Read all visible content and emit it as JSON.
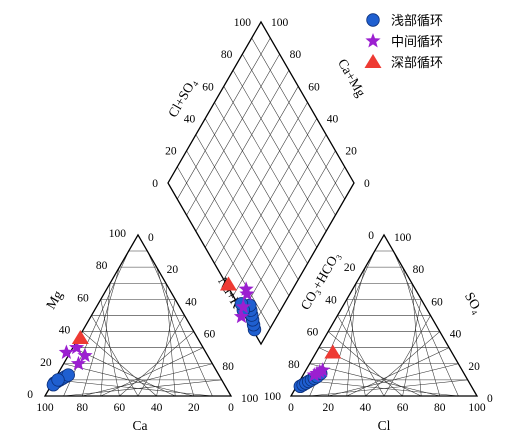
{
  "chart_data": {
    "type": "scatter",
    "subtype": "piper-diagram",
    "ternary_scale": [
      0,
      100
    ],
    "tick_labels": [
      "0",
      "20",
      "40",
      "60",
      "80",
      "100"
    ],
    "axes": {
      "cation_bottom": "Ca",
      "cation_left": "Mg",
      "cation_right": "Na+K",
      "anion_bottom": "Cl",
      "anion_left": "CO₃+HCO₃",
      "anion_right": "SO₄",
      "diamond_upper_left": "Cl+SO₄",
      "diamond_upper_right": "Ca+Mg"
    },
    "legend": {
      "position": "top-right"
    },
    "colors": {
      "shallow": "#1f5fd0",
      "middle": "#9b1fd0",
      "deep": "#ee3a33"
    },
    "series": [
      {
        "name": "浅部循环",
        "marker": "circle",
        "color": "#1f5fd0",
        "points": [
          {
            "Ca": 91,
            "Mg": 8,
            "Cl": 2,
            "SO4": 6
          },
          {
            "Ca": 89,
            "Mg": 9,
            "Cl": 3,
            "SO4": 7
          },
          {
            "Ca": 87,
            "Mg": 10,
            "Cl": 4,
            "SO4": 8
          },
          {
            "Ca": 85,
            "Mg": 11,
            "Cl": 5,
            "SO4": 9
          },
          {
            "Ca": 83,
            "Mg": 12,
            "Cl": 6,
            "SO4": 10
          },
          {
            "Ca": 81,
            "Mg": 13,
            "Cl": 7,
            "SO4": 11
          },
          {
            "Ca": 92,
            "Mg": 7,
            "Cl": 8,
            "SO4": 12
          },
          {
            "Ca": 88,
            "Mg": 10,
            "Cl": 9,
            "SO4": 14
          }
        ]
      },
      {
        "name": "中间循环",
        "marker": "star",
        "color": "#9b1fd0",
        "points": [
          {
            "Ca": 75,
            "Mg": 27,
            "Cl": 6,
            "SO4": 13
          },
          {
            "Ca": 72,
            "Mg": 20,
            "Cl": 8,
            "SO4": 15
          },
          {
            "Ca": 68,
            "Mg": 30,
            "Cl": 7,
            "SO4": 14
          },
          {
            "Ca": 66,
            "Mg": 25,
            "Cl": 9,
            "SO4": 16
          }
        ]
      },
      {
        "name": "深部循环",
        "marker": "triangle",
        "color": "#ee3a33",
        "points": [
          {
            "Ca": 63,
            "Mg": 36,
            "Cl": 9,
            "SO4": 27
          }
        ]
      }
    ]
  }
}
